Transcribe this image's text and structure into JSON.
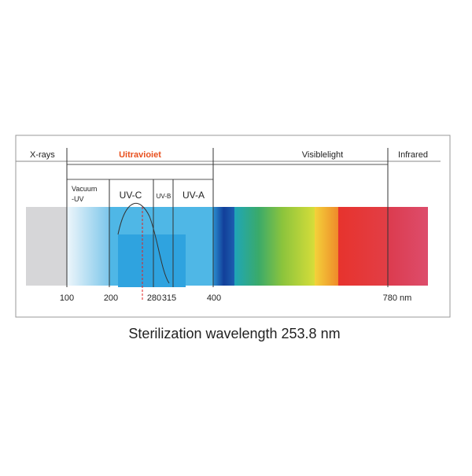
{
  "regions": [
    "X-rays",
    "Uitravioiet",
    "Visiblelight",
    "Infrared"
  ],
  "bands": {
    "vacuum_uv": [
      "Vacuum",
      "-UV"
    ],
    "uv_c": "UV-C",
    "uv_b": "UV-B",
    "uv_a": "UV-A"
  },
  "axis": {
    "ticks": [
      "100",
      "200",
      "280",
      "315",
      "400",
      "780 nm"
    ]
  },
  "caption": "Sterilization wavelength 253.8 nm"
}
